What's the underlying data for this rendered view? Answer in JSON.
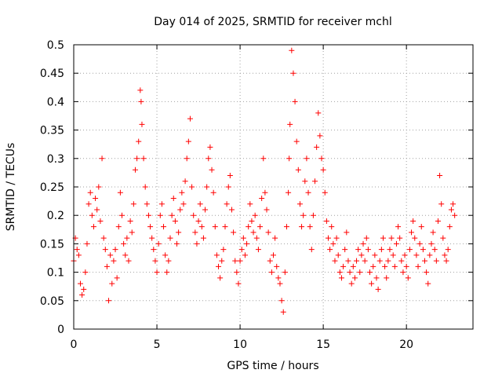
{
  "chart_data": {
    "type": "scatter",
    "title": "Day 014 of 2025, SRMTID for receiver mchl",
    "xlabel": "GPS time / hours",
    "ylabel": "SRMTID / TECUs",
    "xlim": [
      0,
      24
    ],
    "ylim": [
      0,
      0.5
    ],
    "x_ticks": [
      0,
      5,
      10,
      15,
      20
    ],
    "x_tick_labels": [
      "0",
      "5",
      "10",
      "15",
      "20"
    ],
    "y_ticks": [
      0,
      0.05,
      0.1,
      0.15,
      0.2,
      0.25,
      0.3,
      0.35,
      0.4,
      0.45,
      0.5
    ],
    "y_tick_labels": [
      "0",
      "0.05",
      "0.1",
      "0.15",
      "0.2",
      "0.25",
      "0.3",
      "0.35",
      "0.4",
      "0.45",
      "0.5"
    ],
    "grid": true,
    "marker": "+",
    "color": "#ff0000",
    "series": [
      {
        "name": "SRMTID",
        "x": [
          0.0,
          0.1,
          0.2,
          0.3,
          0.4,
          0.5,
          0.6,
          0.7,
          0.8,
          0.9,
          1.0,
          1.1,
          1.2,
          1.3,
          1.4,
          1.5,
          1.6,
          1.7,
          1.8,
          1.9,
          2.0,
          2.1,
          2.2,
          2.3,
          2.4,
          2.5,
          2.6,
          2.7,
          2.8,
          2.9,
          3.0,
          3.1,
          3.2,
          3.3,
          3.4,
          3.5,
          3.6,
          3.7,
          3.8,
          3.9,
          4.0,
          4.05,
          4.1,
          4.2,
          4.3,
          4.4,
          4.5,
          4.6,
          4.7,
          4.8,
          4.9,
          5.0,
          5.1,
          5.2,
          5.3,
          5.4,
          5.5,
          5.6,
          5.7,
          5.8,
          5.9,
          6.0,
          6.1,
          6.2,
          6.3,
          6.4,
          6.5,
          6.6,
          6.7,
          6.8,
          6.9,
          7.0,
          7.1,
          7.2,
          7.3,
          7.4,
          7.5,
          7.6,
          7.7,
          7.8,
          7.9,
          8.0,
          8.1,
          8.2,
          8.3,
          8.4,
          8.5,
          8.6,
          8.7,
          8.8,
          8.9,
          9.0,
          9.1,
          9.2,
          9.3,
          9.4,
          9.5,
          9.6,
          9.7,
          9.8,
          9.9,
          10.0,
          10.1,
          10.2,
          10.3,
          10.4,
          10.5,
          10.6,
          10.7,
          10.8,
          10.9,
          11.0,
          11.1,
          11.2,
          11.3,
          11.4,
          11.5,
          11.6,
          11.7,
          11.8,
          11.9,
          12.0,
          12.1,
          12.2,
          12.3,
          12.4,
          12.5,
          12.6,
          12.7,
          12.8,
          12.9,
          12.95,
          13.0,
          13.1,
          13.2,
          13.3,
          13.4,
          13.5,
          13.6,
          13.7,
          13.8,
          13.9,
          14.0,
          14.1,
          14.2,
          14.3,
          14.4,
          14.5,
          14.6,
          14.7,
          14.8,
          14.9,
          15.0,
          15.1,
          15.2,
          15.3,
          15.4,
          15.5,
          15.6,
          15.7,
          15.8,
          15.9,
          16.0,
          16.1,
          16.2,
          16.3,
          16.4,
          16.5,
          16.6,
          16.7,
          16.8,
          16.9,
          17.0,
          17.1,
          17.2,
          17.3,
          17.4,
          17.5,
          17.6,
          17.7,
          17.8,
          17.9,
          18.0,
          18.1,
          18.2,
          18.3,
          18.4,
          18.5,
          18.6,
          18.7,
          18.8,
          18.9,
          19.0,
          19.1,
          19.2,
          19.3,
          19.4,
          19.5,
          19.6,
          19.7,
          19.8,
          19.9,
          20.0,
          20.1,
          20.2,
          20.3,
          20.4,
          20.5,
          20.6,
          20.7,
          20.8,
          20.9,
          21.0,
          21.1,
          21.2,
          21.3,
          21.4,
          21.5,
          21.6,
          21.7,
          21.8,
          21.9,
          22.0,
          22.1,
          22.2,
          22.3,
          22.4,
          22.5,
          22.6,
          22.7,
          22.8,
          22.9
        ],
        "y": [
          0.12,
          0.16,
          0.14,
          0.13,
          0.08,
          0.06,
          0.07,
          0.1,
          0.15,
          0.22,
          0.24,
          0.2,
          0.18,
          0.23,
          0.21,
          0.25,
          0.19,
          0.3,
          0.16,
          0.14,
          0.11,
          0.05,
          0.13,
          0.08,
          0.12,
          0.14,
          0.09,
          0.18,
          0.24,
          0.2,
          0.15,
          0.13,
          0.16,
          0.12,
          0.19,
          0.17,
          0.22,
          0.28,
          0.3,
          0.33,
          0.42,
          0.4,
          0.36,
          0.3,
          0.25,
          0.22,
          0.2,
          0.18,
          0.16,
          0.14,
          0.12,
          0.1,
          0.15,
          0.2,
          0.22,
          0.18,
          0.13,
          0.1,
          0.12,
          0.16,
          0.2,
          0.23,
          0.19,
          0.15,
          0.17,
          0.21,
          0.24,
          0.22,
          0.26,
          0.3,
          0.33,
          0.37,
          0.25,
          0.2,
          0.17,
          0.15,
          0.19,
          0.22,
          0.18,
          0.16,
          0.21,
          0.25,
          0.3,
          0.32,
          0.28,
          0.24,
          0.18,
          0.13,
          0.11,
          0.09,
          0.12,
          0.14,
          0.18,
          0.22,
          0.25,
          0.27,
          0.21,
          0.17,
          0.12,
          0.1,
          0.08,
          0.12,
          0.14,
          0.16,
          0.13,
          0.15,
          0.18,
          0.22,
          0.19,
          0.17,
          0.2,
          0.16,
          0.14,
          0.18,
          0.23,
          0.3,
          0.24,
          0.21,
          0.17,
          0.12,
          0.1,
          0.13,
          0.16,
          0.11,
          0.09,
          0.08,
          0.05,
          0.03,
          0.1,
          0.18,
          0.24,
          0.3,
          0.36,
          0.49,
          0.45,
          0.4,
          0.33,
          0.28,
          0.22,
          0.18,
          0.2,
          0.26,
          0.3,
          0.24,
          0.18,
          0.14,
          0.2,
          0.26,
          0.32,
          0.38,
          0.34,
          0.3,
          0.28,
          0.24,
          0.19,
          0.16,
          0.14,
          0.18,
          0.15,
          0.12,
          0.16,
          0.13,
          0.1,
          0.09,
          0.11,
          0.14,
          0.17,
          0.12,
          0.1,
          0.08,
          0.11,
          0.09,
          0.12,
          0.14,
          0.1,
          0.13,
          0.15,
          0.12,
          0.16,
          0.14,
          0.1,
          0.08,
          0.11,
          0.13,
          0.09,
          0.07,
          0.12,
          0.14,
          0.16,
          0.11,
          0.09,
          0.12,
          0.14,
          0.16,
          0.13,
          0.11,
          0.15,
          0.18,
          0.16,
          0.12,
          0.1,
          0.13,
          0.11,
          0.09,
          0.14,
          0.17,
          0.19,
          0.16,
          0.13,
          0.11,
          0.15,
          0.18,
          0.14,
          0.12,
          0.1,
          0.08,
          0.13,
          0.15,
          0.17,
          0.14,
          0.12,
          0.19,
          0.27,
          0.22,
          0.16,
          0.13,
          0.12,
          0.14,
          0.18,
          0.21,
          0.22,
          0.2
        ]
      }
    ]
  }
}
